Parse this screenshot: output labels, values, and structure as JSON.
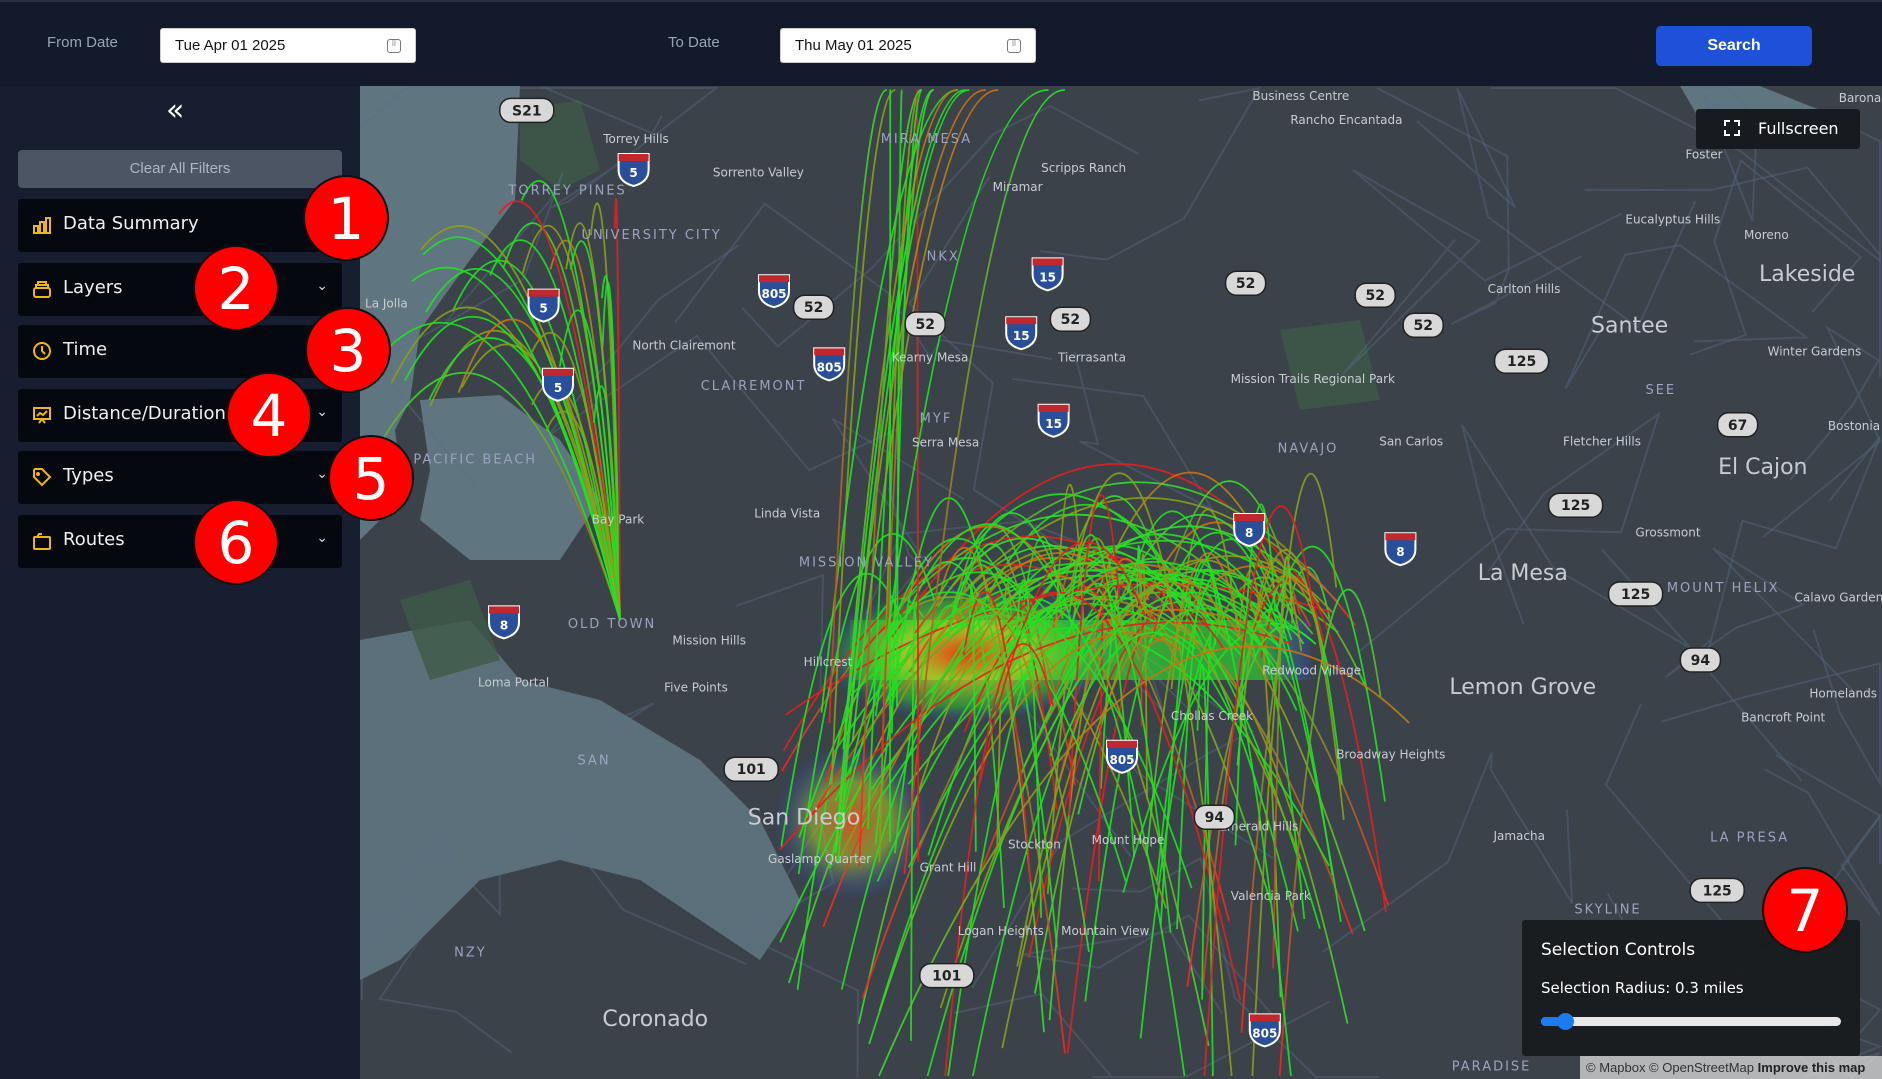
{
  "header": {
    "from_label": "From Date",
    "from_value": "Tue Apr 01 2025",
    "to_label": "To Date",
    "to_value": "Thu May 01 2025",
    "search_label": "Search"
  },
  "sidebar": {
    "collapse_icon": "double-chevron-left",
    "clear_label": "Clear All Filters",
    "items": [
      {
        "label": "Data Summary",
        "icon": "bar-chart"
      },
      {
        "label": "Layers",
        "icon": "layers"
      },
      {
        "label": "Time",
        "icon": "clock"
      },
      {
        "label": "Distance/Duration",
        "icon": "presentation-chart"
      },
      {
        "label": "Types",
        "icon": "tag"
      },
      {
        "label": "Routes",
        "icon": "folder"
      }
    ]
  },
  "badges": [
    "1",
    "2",
    "3",
    "4",
    "5",
    "6",
    "7"
  ],
  "map": {
    "fullscreen_label": "Fullscreen",
    "selection": {
      "title": "Selection Controls",
      "radius_label": "Selection Radius: 0.3 miles",
      "radius_fraction": 0.08
    },
    "attribution": {
      "text": "© Mapbox © OpenStreetMap",
      "improve": "Improve this map"
    },
    "places": [
      "La Jolla",
      "UNIVERSITY CITY",
      "Sorrento Valley",
      "MIRA MESA",
      "Kearny Mesa",
      "Serra Mesa",
      "CLAIREMONT",
      "North Clairemont",
      "Tierrasanta",
      "Linda Vista",
      "MISSION VALLEY",
      "Bay Park",
      "Mission Hills",
      "OLD TOWN",
      "Loma Portal",
      "Five Points",
      "Hillcrest",
      "San Diego",
      "Gaslamp Quarter",
      "Grant Hill",
      "Stockton",
      "Mount Hope",
      "Logan Heights",
      "Mountain View",
      "Coronado",
      "NZY",
      "SAN",
      "MYF",
      "NKX",
      "Santee",
      "Lakeside",
      "El Cajon",
      "La Mesa",
      "Lemon Grove",
      "San Carlos",
      "Fletcher Hills",
      "Grossmont",
      "Jamacha",
      "SKYLINE",
      "LA PRESA",
      "NAVAJO",
      "Emerald Hills",
      "Valencia Park",
      "Broadway Heights",
      "Redwood Village",
      "Chollas Creek",
      "MOUNT HELIX",
      "Bancroft Point",
      "Homelands",
      "Winter Gardens",
      "Eucalyptus Hills",
      "Moreno",
      "Carlton Hills",
      "Rancho Encantada",
      "Business Centre",
      "Miramar",
      "Scripps Ranch",
      "PACIFIC BEACH",
      "TORREY PINES",
      "PARADISE",
      "Mission Trails Regional Park",
      "Torrey Hills",
      "Barona",
      "Foster",
      "Bostonia",
      "Calavo Gardens",
      "SEE"
    ],
    "shields": [
      "5",
      "5",
      "5",
      "805",
      "805",
      "805",
      "805",
      "52",
      "52",
      "52",
      "52",
      "52",
      "52",
      "15",
      "15",
      "15",
      "8",
      "8",
      "8",
      "125",
      "125",
      "125",
      "125",
      "67",
      "94",
      "94",
      "101",
      "101",
      "S21"
    ]
  },
  "colors": {
    "accent": "#1e50d8",
    "icon": "#f2b612",
    "arc_green": "#22e022",
    "arc_red": "#e81e1e",
    "badge": "#ff0000"
  }
}
